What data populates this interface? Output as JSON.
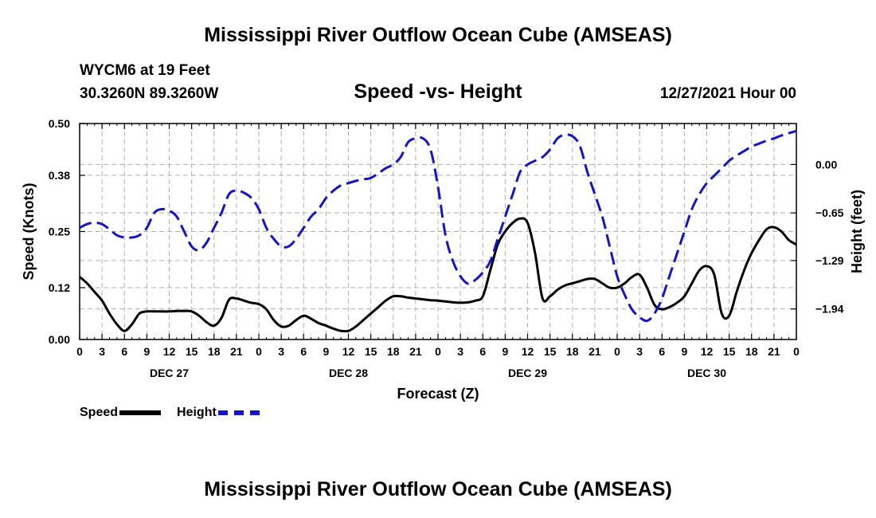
{
  "header": {
    "title": "Mississippi River Outflow Ocean Cube (AMSEAS)",
    "station": "WYCM6 at 19 Feet",
    "coords": "30.3260N  89.3260W",
    "subtitle": "Speed -vs- Height",
    "datetime": "12/27/2021 Hour 00"
  },
  "footer": {
    "title": "Mississippi River Outflow Ocean Cube (AMSEAS)"
  },
  "legend": {
    "speed": "Speed",
    "height": "Height"
  },
  "colors": {
    "speed": "#000000",
    "height": "#1515c8",
    "grid": "#b0b0b0"
  },
  "chart_data": {
    "type": "line",
    "xlabel": "Forecast (Z)",
    "ylabel_left": "Speed (Knots)",
    "ylabel_right": "Height (feet)",
    "x_range_hours": [
      0,
      96
    ],
    "x_tick_hours": [
      0,
      3,
      6,
      9,
      12,
      15,
      18,
      21,
      24,
      27,
      30,
      33,
      36,
      39,
      42,
      45,
      48,
      51,
      54,
      57,
      60,
      63,
      66,
      69,
      72,
      75,
      78,
      81,
      84,
      87,
      90,
      93,
      96
    ],
    "x_tick_labels": [
      "0",
      "3",
      "6",
      "9",
      "12",
      "15",
      "18",
      "21",
      "0",
      "3",
      "6",
      "9",
      "12",
      "15",
      "18",
      "21",
      "0",
      "3",
      "6",
      "9",
      "12",
      "15",
      "18",
      "21",
      "0",
      "3",
      "6",
      "9",
      "12",
      "15",
      "18",
      "21",
      "0"
    ],
    "day_labels": [
      {
        "hour": 12,
        "label": "DEC 27"
      },
      {
        "hour": 36,
        "label": "DEC 28"
      },
      {
        "hour": 60,
        "label": "DEC 29"
      },
      {
        "hour": 84,
        "label": "DEC 30"
      }
    ],
    "ylim_left": [
      0,
      0.5
    ],
    "yticks_left": [
      0.0,
      0.12,
      0.25,
      0.38,
      0.5
    ],
    "ytick_labels_left": [
      "0.00",
      "0.12",
      "0.25",
      "0.38",
      "0.50"
    ],
    "ylim_right": [
      -2.35,
      0.55
    ],
    "yticks_right": [
      0.0,
      -0.65,
      -1.29,
      -1.94
    ],
    "ytick_labels_right": [
      "0.00",
      "−0.65",
      "−1.29",
      "−1.94"
    ],
    "series": [
      {
        "name": "Speed",
        "axis": "left",
        "style": "solid",
        "x": [
          0,
          1,
          2,
          3,
          4,
          5,
          6,
          7,
          8,
          9,
          10,
          11,
          12,
          13,
          14,
          15,
          16,
          17,
          18,
          19,
          20,
          21,
          22,
          23,
          24,
          25,
          26,
          27,
          28,
          29,
          30,
          31,
          32,
          33,
          34,
          35,
          36,
          37,
          38,
          39,
          40,
          41,
          42,
          43,
          44,
          45,
          46,
          47,
          48,
          49,
          50,
          51,
          52,
          53,
          54,
          55,
          56,
          57,
          58,
          59,
          60,
          61,
          62,
          63,
          64,
          65,
          66,
          67,
          68,
          69,
          70,
          71,
          72,
          73,
          74,
          75,
          76,
          77,
          78,
          79,
          80,
          81,
          82,
          83,
          84,
          85,
          86,
          87,
          88,
          89,
          90,
          91,
          92,
          93,
          94,
          95,
          96
        ],
        "values": [
          0.145,
          0.13,
          0.11,
          0.09,
          0.06,
          0.035,
          0.02,
          0.035,
          0.06,
          0.065,
          0.065,
          0.065,
          0.065,
          0.066,
          0.066,
          0.065,
          0.055,
          0.04,
          0.032,
          0.05,
          0.092,
          0.095,
          0.09,
          0.085,
          0.082,
          0.07,
          0.045,
          0.03,
          0.032,
          0.045,
          0.055,
          0.048,
          0.038,
          0.032,
          0.025,
          0.02,
          0.02,
          0.03,
          0.045,
          0.06,
          0.075,
          0.09,
          0.1,
          0.1,
          0.097,
          0.095,
          0.093,
          0.091,
          0.09,
          0.088,
          0.086,
          0.085,
          0.086,
          0.09,
          0.1,
          0.16,
          0.22,
          0.25,
          0.27,
          0.28,
          0.27,
          0.2,
          0.095,
          0.1,
          0.115,
          0.125,
          0.13,
          0.135,
          0.14,
          0.14,
          0.13,
          0.12,
          0.12,
          0.13,
          0.145,
          0.15,
          0.12,
          0.08,
          0.07,
          0.075,
          0.085,
          0.1,
          0.13,
          0.16,
          0.17,
          0.15,
          0.06,
          0.055,
          0.11,
          0.16,
          0.2,
          0.23,
          0.255,
          0.26,
          0.25,
          0.23,
          0.22
        ]
      },
      {
        "name": "Height",
        "axis": "right",
        "style": "dashed",
        "x": [
          0,
          1,
          2,
          3,
          4,
          5,
          6,
          7,
          8,
          9,
          10,
          11,
          12,
          13,
          14,
          15,
          16,
          17,
          18,
          19,
          20,
          21,
          22,
          23,
          24,
          25,
          26,
          27,
          28,
          29,
          30,
          31,
          32,
          33,
          34,
          35,
          36,
          37,
          38,
          39,
          40,
          41,
          42,
          43,
          44,
          45,
          46,
          47,
          48,
          49,
          50,
          51,
          52,
          53,
          54,
          55,
          56,
          57,
          58,
          59,
          60,
          61,
          62,
          63,
          64,
          65,
          66,
          67,
          68,
          69,
          70,
          71,
          72,
          73,
          74,
          75,
          76,
          77,
          78,
          79,
          80,
          81,
          82,
          83,
          84,
          85,
          86,
          87,
          88,
          89,
          90,
          91,
          92,
          93,
          94,
          95,
          96
        ],
        "values": [
          -0.85,
          -0.8,
          -0.78,
          -0.8,
          -0.87,
          -0.95,
          -0.98,
          -0.98,
          -0.95,
          -0.85,
          -0.65,
          -0.6,
          -0.62,
          -0.7,
          -0.9,
          -1.1,
          -1.15,
          -1.05,
          -0.85,
          -0.65,
          -0.4,
          -0.35,
          -0.38,
          -0.45,
          -0.6,
          -0.85,
          -1.0,
          -1.1,
          -1.1,
          -1.0,
          -0.85,
          -0.7,
          -0.6,
          -0.45,
          -0.35,
          -0.28,
          -0.25,
          -0.22,
          -0.2,
          -0.18,
          -0.12,
          -0.05,
          0.0,
          0.1,
          0.3,
          0.35,
          0.35,
          0.2,
          -0.3,
          -0.95,
          -1.3,
          -1.5,
          -1.6,
          -1.55,
          -1.45,
          -1.3,
          -1.0,
          -0.7,
          -0.4,
          -0.1,
          0.0,
          0.05,
          0.1,
          0.2,
          0.35,
          0.4,
          0.38,
          0.25,
          -0.1,
          -0.4,
          -0.7,
          -1.1,
          -1.5,
          -1.75,
          -1.95,
          -2.05,
          -2.1,
          -2.0,
          -1.8,
          -1.5,
          -1.2,
          -0.9,
          -0.6,
          -0.4,
          -0.25,
          -0.15,
          -0.05,
          0.05,
          0.12,
          0.18,
          0.24,
          0.28,
          0.32,
          0.35,
          0.39,
          0.42,
          0.45
        ]
      }
    ]
  }
}
